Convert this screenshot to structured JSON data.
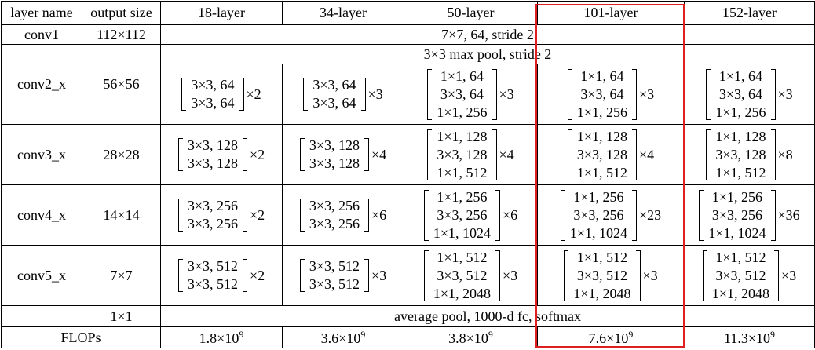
{
  "header": [
    "layer name",
    "output size",
    "18-layer",
    "34-layer",
    "50-layer",
    "101-layer",
    "152-layer"
  ],
  "rows": [
    {
      "name": "conv1",
      "output": "112×112",
      "span": "7×7, 64, stride 2"
    },
    {
      "name": "conv2_x",
      "output": "56×56",
      "pool": "3×3 max pool, stride 2",
      "blocks": [
        {
          "lines": [
            "3×3, 64",
            "3×3, 64"
          ],
          "times": "×2"
        },
        {
          "lines": [
            "3×3, 64",
            "3×3, 64"
          ],
          "times": "×3"
        },
        {
          "lines": [
            "1×1, 64",
            "3×3, 64",
            "1×1, 256"
          ],
          "times": "×3"
        },
        {
          "lines": [
            "1×1, 64",
            "3×3, 64",
            "1×1, 256"
          ],
          "times": "×3"
        },
        {
          "lines": [
            "1×1, 64",
            "3×3, 64",
            "1×1, 256"
          ],
          "times": "×3"
        }
      ]
    },
    {
      "name": "conv3_x",
      "output": "28×28",
      "blocks": [
        {
          "lines": [
            "3×3, 128",
            "3×3, 128"
          ],
          "times": "×2"
        },
        {
          "lines": [
            "3×3, 128",
            "3×3, 128"
          ],
          "times": "×4"
        },
        {
          "lines": [
            "1×1, 128",
            "3×3, 128",
            "1×1, 512"
          ],
          "times": "×4"
        },
        {
          "lines": [
            "1×1, 128",
            "3×3, 128",
            "1×1, 512"
          ],
          "times": "×4"
        },
        {
          "lines": [
            "1×1, 128",
            "3×3, 128",
            "1×1, 512"
          ],
          "times": "×8"
        }
      ]
    },
    {
      "name": "conv4_x",
      "output": "14×14",
      "blocks": [
        {
          "lines": [
            "3×3, 256",
            "3×3, 256"
          ],
          "times": "×2"
        },
        {
          "lines": [
            "3×3, 256",
            "3×3, 256"
          ],
          "times": "×6"
        },
        {
          "lines": [
            "1×1, 256",
            "3×3, 256",
            "1×1, 1024"
          ],
          "times": "×6"
        },
        {
          "lines": [
            "1×1, 256",
            "3×3, 256",
            "1×1, 1024"
          ],
          "times": "×23"
        },
        {
          "lines": [
            "1×1, 256",
            "3×3, 256",
            "1×1, 1024"
          ],
          "times": "×36"
        }
      ]
    },
    {
      "name": "conv5_x",
      "output": "7×7",
      "blocks": [
        {
          "lines": [
            "3×3, 512",
            "3×3, 512"
          ],
          "times": "×2"
        },
        {
          "lines": [
            "3×3, 512",
            "3×3, 512"
          ],
          "times": "×3"
        },
        {
          "lines": [
            "1×1, 512",
            "3×3, 512",
            "1×1, 2048"
          ],
          "times": "×3"
        },
        {
          "lines": [
            "1×1, 512",
            "3×3, 512",
            "1×1, 2048"
          ],
          "times": "×3"
        },
        {
          "lines": [
            "1×1, 512",
            "3×3, 512",
            "1×1, 2048"
          ],
          "times": "×3"
        }
      ]
    },
    {
      "output": "1×1",
      "span": "average pool, 1000-d fc, softmax"
    },
    {
      "name": "FLOPs",
      "flops": [
        {
          "base": "1.8×10",
          "exp": "9"
        },
        {
          "base": "3.6×10",
          "exp": "9"
        },
        {
          "base": "3.8×10",
          "exp": "9"
        },
        {
          "base": "7.6×10",
          "exp": "9"
        },
        {
          "base": "11.3×10",
          "exp": "9"
        }
      ]
    }
  ]
}
